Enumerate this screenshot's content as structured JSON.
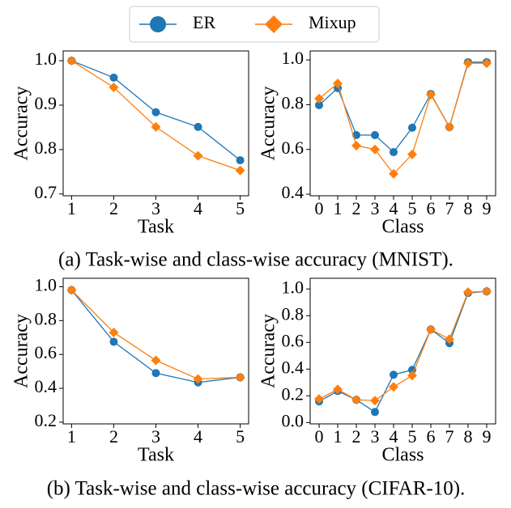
{
  "chart_data": [
    {
      "type": "line",
      "xlabel": "Task",
      "ylabel": "Accuracy",
      "x": [
        1,
        2,
        3,
        4,
        5
      ],
      "series": [
        {
          "name": "ER",
          "color": "#1f77b4",
          "marker": "circle",
          "values": [
            1.0,
            0.962,
            0.884,
            0.851,
            0.776
          ]
        },
        {
          "name": "Mixup",
          "color": "#ff7f0e",
          "marker": "diamond",
          "values": [
            1.0,
            0.94,
            0.851,
            0.786,
            0.753
          ]
        }
      ],
      "xlim": [
        0.8,
        5.2
      ],
      "ylim": [
        0.696,
        1.022
      ],
      "xticks": [
        1,
        2,
        3,
        4,
        5
      ],
      "yticks": [
        {
          "value": 0.7,
          "label": "0.7"
        },
        {
          "value": 0.8,
          "label": "0.8"
        },
        {
          "value": 0.9,
          "label": "0.9"
        },
        {
          "value": 1,
          "label": "1.0"
        }
      ]
    },
    {
      "type": "line",
      "xlabel": "Class",
      "ylabel": "Accuracy",
      "x": [
        0,
        1,
        2,
        3,
        4,
        5,
        6,
        7,
        8,
        9
      ],
      "series": [
        {
          "name": "ER",
          "color": "#1f77b4",
          "marker": "circle",
          "values": [
            0.798,
            0.874,
            0.664,
            0.664,
            0.588,
            0.697,
            0.848,
            0.7,
            0.99,
            0.99
          ]
        },
        {
          "name": "Mixup",
          "color": "#ff7f0e",
          "marker": "diamond",
          "values": [
            0.827,
            0.895,
            0.617,
            0.6,
            0.491,
            0.578,
            0.845,
            0.7,
            0.985,
            0.985
          ]
        }
      ],
      "xlim": [
        -0.48,
        9.48
      ],
      "ylim": [
        0.393,
        1.04
      ],
      "xticks": [
        0,
        1,
        2,
        3,
        4,
        5,
        6,
        7,
        8,
        9
      ],
      "yticks": [
        0.4,
        0.6,
        0.8,
        {
          "value": 1,
          "label": "1.0"
        }
      ]
    },
    {
      "type": "line",
      "xlabel": "Task",
      "ylabel": "Accuracy",
      "x": [
        1,
        2,
        3,
        4,
        5
      ],
      "series": [
        {
          "name": "ER",
          "color": "#1f77b4",
          "marker": "circle",
          "values": [
            0.98,
            0.675,
            0.49,
            0.435,
            0.465
          ]
        },
        {
          "name": "Mixup",
          "color": "#ff7f0e",
          "marker": "diamond",
          "values": [
            0.98,
            0.73,
            0.565,
            0.455,
            0.465
          ]
        }
      ],
      "xlim": [
        0.8,
        5.2
      ],
      "ylim": [
        0.19,
        1.05
      ],
      "xticks": [
        1,
        2,
        3,
        4,
        5
      ],
      "yticks": [
        0.2,
        0.4,
        0.6,
        0.8,
        {
          "value": 1,
          "label": "1.0"
        }
      ]
    },
    {
      "type": "line",
      "xlabel": "Class",
      "ylabel": "Accuracy",
      "x": [
        0,
        1,
        2,
        3,
        4,
        5,
        6,
        7,
        8,
        9
      ],
      "series": [
        {
          "name": "ER",
          "color": "#1f77b4",
          "marker": "circle",
          "values": [
            0.158,
            0.236,
            0.17,
            0.079,
            0.358,
            0.394,
            0.697,
            0.594,
            0.97,
            0.982
          ]
        },
        {
          "name": "Mixup",
          "color": "#ff7f0e",
          "marker": "diamond",
          "values": [
            0.176,
            0.248,
            0.17,
            0.164,
            0.267,
            0.352,
            0.697,
            0.624,
            0.976,
            0.982
          ]
        }
      ],
      "xlim": [
        -0.48,
        9.48
      ],
      "ylim": [
        -0.01,
        1.08
      ],
      "xticks": [
        0,
        1,
        2,
        3,
        4,
        5,
        6,
        7,
        8,
        9
      ],
      "yticks": [
        {
          "value": 0,
          "label": "0.0"
        },
        0.2,
        0.4,
        0.6,
        0.8,
        {
          "value": 1,
          "label": "1.0"
        }
      ]
    }
  ],
  "captions": [
    "(a) Task-wise and class-wise accuracy (MNIST).",
    "(b) Task-wise and class-wise accuracy (CIFAR-10)."
  ]
}
